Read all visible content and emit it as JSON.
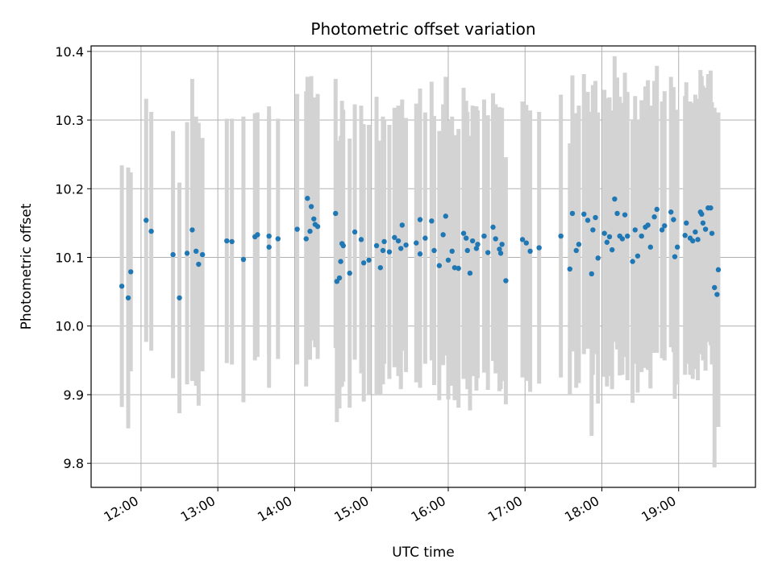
{
  "chart_data": {
    "type": "scatter",
    "title": "Photometric offset variation",
    "xlabel": "UTC time",
    "ylabel": "Photometric offset",
    "xlim": [
      "11:21",
      "20:00"
    ],
    "ylim": [
      9.765,
      10.408
    ],
    "x_ticks": [
      "12:00",
      "13:00",
      "14:00",
      "15:00",
      "16:00",
      "17:00",
      "18:00",
      "19:00"
    ],
    "y_ticks": [
      9.8,
      9.9,
      10.0,
      10.1,
      10.2,
      10.3,
      10.4
    ],
    "y_tick_labels": [
      "9.8",
      "9.9",
      "10.0",
      "10.1",
      "10.2",
      "10.3",
      "10.4"
    ],
    "grid": true,
    "colors": {
      "point": "#1f77b4",
      "errorbar": "#d3d3d3",
      "grid": "#b0b0b0"
    },
    "series": [
      {
        "points": [
          [
            "11:45",
            10.058,
            0.176
          ],
          [
            "11:50",
            10.041,
            0.19
          ],
          [
            "11:52",
            10.079,
            0.145
          ],
          [
            "12:04",
            10.154,
            0.177
          ],
          [
            "12:08",
            10.138,
            0.174
          ],
          [
            "12:25",
            10.104,
            0.18
          ],
          [
            "12:30",
            10.041,
            0.168
          ],
          [
            "12:36",
            10.106,
            0.191
          ],
          [
            "12:40",
            10.14,
            0.22
          ],
          [
            "12:43",
            10.109,
            0.196
          ],
          [
            "12:45",
            10.09,
            0.206
          ],
          [
            "12:48",
            10.104,
            0.17
          ],
          [
            "13:07",
            10.124,
            0.178
          ],
          [
            "13:11",
            10.123,
            0.179
          ],
          [
            "13:20",
            10.097,
            0.208
          ],
          [
            "13:29",
            10.13,
            0.18
          ],
          [
            "13:31",
            10.133,
            0.178
          ],
          [
            "13:40",
            10.115,
            0.205
          ],
          [
            "13:40",
            10.131,
            0.175
          ],
          [
            "13:47",
            10.127,
            0.175
          ],
          [
            "14:02",
            10.141,
            0.197
          ],
          [
            "14:09",
            10.127,
            0.215
          ],
          [
            "14:10",
            10.186,
            0.177
          ],
          [
            "14:12",
            10.138,
            0.187
          ],
          [
            "14:13",
            10.174,
            0.19
          ],
          [
            "14:15",
            10.156,
            0.177
          ],
          [
            "14:16",
            10.148,
            0.179
          ],
          [
            "14:18",
            10.145,
            0.193
          ],
          [
            "14:32",
            10.164,
            0.196
          ],
          [
            "14:33",
            10.065,
            0.205
          ],
          [
            "14:35",
            10.07,
            0.19
          ],
          [
            "14:36",
            10.094,
            0.183
          ],
          [
            "14:37",
            10.12,
            0.208
          ],
          [
            "14:38",
            10.117,
            0.198
          ],
          [
            "14:43",
            10.077,
            0.196
          ],
          [
            "14:47",
            10.137,
            0.186
          ],
          [
            "14:52",
            10.126,
            0.195
          ],
          [
            "14:54",
            10.092,
            0.202
          ],
          [
            "14:58",
            10.096,
            0.197
          ],
          [
            "15:04",
            10.117,
            0.217
          ],
          [
            "15:07",
            10.085,
            0.185
          ],
          [
            "15:09",
            10.11,
            0.195
          ],
          [
            "15:10",
            10.123,
            0.178
          ],
          [
            "15:14",
            10.108,
            0.185
          ],
          [
            "15:18",
            10.129,
            0.189
          ],
          [
            "15:21",
            10.124,
            0.197
          ],
          [
            "15:23",
            10.113,
            0.205
          ],
          [
            "15:24",
            10.147,
            0.183
          ],
          [
            "15:27",
            10.118,
            0.185
          ],
          [
            "15:35",
            10.121,
            0.203
          ],
          [
            "15:38",
            10.155,
            0.191
          ],
          [
            "15:38",
            10.105,
            0.195
          ],
          [
            "15:42",
            10.128,
            0.183
          ],
          [
            "15:47",
            10.153,
            0.203
          ],
          [
            "15:49",
            10.11,
            0.196
          ],
          [
            "15:53",
            10.088,
            0.196
          ],
          [
            "15:56",
            10.133,
            0.19
          ],
          [
            "15:58",
            10.16,
            0.203
          ],
          [
            "16:00",
            10.096,
            0.203
          ],
          [
            "16:03",
            10.109,
            0.196
          ],
          [
            "16:05",
            10.085,
            0.193
          ],
          [
            "16:08",
            10.084,
            0.203
          ],
          [
            "16:12",
            10.135,
            0.212
          ],
          [
            "16:14",
            10.128,
            0.2
          ],
          [
            "16:15",
            10.11,
            0.202
          ],
          [
            "16:17",
            10.077,
            0.2
          ],
          [
            "16:19",
            10.124,
            0.197
          ],
          [
            "16:22",
            10.113,
            0.207
          ],
          [
            "16:23",
            10.119,
            0.195
          ],
          [
            "16:28",
            10.131,
            0.199
          ],
          [
            "16:31",
            10.107,
            0.2
          ],
          [
            "16:35",
            10.144,
            0.195
          ],
          [
            "16:37",
            10.127,
            0.196
          ],
          [
            "16:40",
            10.112,
            0.207
          ],
          [
            "16:41",
            10.106,
            0.198
          ],
          [
            "16:42",
            10.119,
            0.199
          ],
          [
            "16:45",
            10.066,
            0.18
          ],
          [
            "16:58",
            10.126,
            0.201
          ],
          [
            "17:01",
            10.121,
            0.201
          ],
          [
            "17:04",
            10.109,
            0.205
          ],
          [
            "17:11",
            10.114,
            0.198
          ],
          [
            "17:28",
            10.131,
            0.206
          ],
          [
            "17:35",
            10.083,
            0.183
          ],
          [
            "17:37",
            10.164,
            0.201
          ],
          [
            "17:40",
            10.11,
            0.2
          ],
          [
            "17:42",
            10.119,
            0.202
          ],
          [
            "17:46",
            10.163,
            0.204
          ],
          [
            "17:49",
            10.154,
            0.187
          ],
          [
            "17:52",
            10.076,
            0.236
          ],
          [
            "17:53",
            10.14,
            0.211
          ],
          [
            "17:55",
            10.158,
            0.199
          ],
          [
            "17:57",
            10.099,
            0.212
          ],
          [
            "18:02",
            10.135,
            0.209
          ],
          [
            "18:04",
            10.122,
            0.21
          ],
          [
            "18:06",
            10.13,
            0.203
          ],
          [
            "18:08",
            10.111,
            0.203
          ],
          [
            "18:10",
            10.185,
            0.208
          ],
          [
            "18:12",
            10.164,
            0.198
          ],
          [
            "18:14",
            10.131,
            0.203
          ],
          [
            "18:16",
            10.127,
            0.198
          ],
          [
            "18:18",
            10.162,
            0.207
          ],
          [
            "18:20",
            10.131,
            0.21
          ],
          [
            "18:24",
            10.094,
            0.206
          ],
          [
            "18:26",
            10.14,
            0.195
          ],
          [
            "18:28",
            10.102,
            0.199
          ],
          [
            "18:31",
            10.131,
            0.198
          ],
          [
            "18:34",
            10.144,
            0.205
          ],
          [
            "18:36",
            10.147,
            0.211
          ],
          [
            "18:38",
            10.115,
            0.206
          ],
          [
            "18:41",
            10.159,
            0.198
          ],
          [
            "18:43",
            10.17,
            0.209
          ],
          [
            "18:47",
            10.14,
            0.187
          ],
          [
            "18:49",
            10.146,
            0.196
          ],
          [
            "18:54",
            10.166,
            0.197
          ],
          [
            "18:56",
            10.155,
            0.193
          ],
          [
            "18:57",
            10.101,
            0.207
          ],
          [
            "18:59",
            10.115,
            0.2
          ],
          [
            "19:05",
            10.132,
            0.203
          ],
          [
            "19:06",
            10.15,
            0.205
          ],
          [
            "19:09",
            10.128,
            0.199
          ],
          [
            "19:11",
            10.124,
            0.201
          ],
          [
            "19:13",
            10.137,
            0.2
          ],
          [
            "19:15",
            10.126,
            0.205
          ],
          [
            "19:17",
            10.166,
            0.207
          ],
          [
            "19:18",
            10.163,
            0.201
          ],
          [
            "19:19",
            10.15,
            0.2
          ],
          [
            "19:21",
            10.141,
            0.206
          ],
          [
            "19:23",
            10.172,
            0.195
          ],
          [
            "19:25",
            10.172,
            0.2
          ],
          [
            "19:26",
            10.135,
            0.191
          ],
          [
            "19:28",
            10.056,
            0.262
          ],
          [
            "19:30",
            10.046,
            0.192
          ],
          [
            "19:31",
            10.082,
            0.229
          ]
        ]
      }
    ]
  }
}
